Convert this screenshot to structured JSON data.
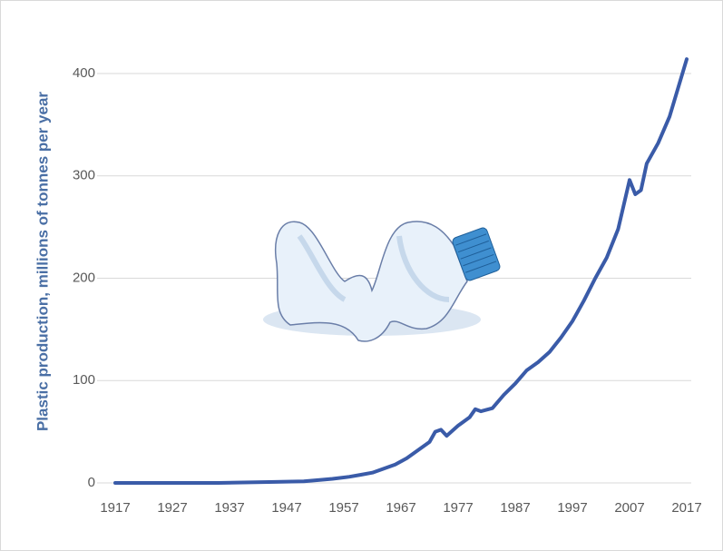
{
  "chart_data": {
    "type": "line",
    "y_label": "Plastic production, millions of tonnes per year",
    "x": [
      1917,
      1925,
      1935,
      1945,
      1950,
      1953,
      1955,
      1958,
      1960,
      1962,
      1964,
      1966,
      1968,
      1970,
      1972,
      1973,
      1974,
      1975,
      1977,
      1979,
      1980,
      1981,
      1983,
      1985,
      1987,
      1989,
      1991,
      1993,
      1995,
      1997,
      1999,
      2001,
      2003,
      2005,
      2007,
      2008,
      2009,
      2010,
      2012,
      2014,
      2017
    ],
    "series": [
      {
        "name": "Plastic production",
        "color": "#3a5ba8",
        "values": [
          0,
          0,
          0,
          1,
          1.5,
          3,
          4,
          6,
          8,
          10,
          14,
          18,
          24,
          32,
          40,
          50,
          52,
          46,
          56,
          64,
          72,
          70,
          73,
          86,
          97,
          110,
          118,
          128,
          142,
          158,
          178,
          200,
          220,
          248,
          296,
          282,
          286,
          312,
          332,
          358,
          414
        ]
      }
    ],
    "xlim": [
      1917,
      2017
    ],
    "xticks": [
      1917,
      1927,
      1937,
      1947,
      1957,
      1967,
      1977,
      1987,
      1997,
      2007,
      2017
    ],
    "ylim": [
      0,
      400
    ],
    "yticks": [
      0,
      100,
      200,
      300,
      400
    ],
    "grid": true
  }
}
